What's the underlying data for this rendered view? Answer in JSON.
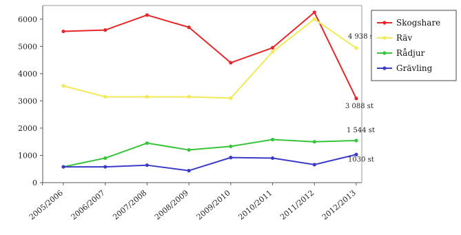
{
  "chart_data": {
    "type": "line",
    "categories": [
      "2005/2006",
      "2006/2007",
      "2007/2008",
      "2008/2009",
      "2009/2010",
      "2010/2011",
      "2011/2012",
      "2012/2013"
    ],
    "ylim": [
      0,
      6500
    ],
    "yticks": [
      0,
      1000,
      2000,
      3000,
      4000,
      5000,
      6000
    ],
    "grid": false,
    "legend_position": "right",
    "series": [
      {
        "name": "Skogshare",
        "color": "#e8262a",
        "values": [
          5550,
          5600,
          6150,
          5700,
          4400,
          4950,
          6250,
          3088
        ]
      },
      {
        "name": "Räv",
        "color": "#f2ea55",
        "values": [
          3550,
          3150,
          3150,
          3150,
          3100,
          4800,
          6000,
          4938
        ]
      },
      {
        "name": "Rådjur",
        "color": "#36c43a",
        "values": [
          580,
          900,
          1450,
          1200,
          1330,
          1580,
          1500,
          1544
        ]
      },
      {
        "name": "Grävling",
        "color": "#3b3bc8",
        "values": [
          580,
          580,
          640,
          440,
          920,
          900,
          660,
          1030
        ]
      }
    ],
    "annotations": [
      {
        "series": "Räv",
        "index": 7,
        "text": "4 938 st"
      },
      {
        "series": "Skogshare",
        "index": 7,
        "text": "3 088 st"
      },
      {
        "series": "Rådjur",
        "index": 7,
        "text": "1 544 st"
      },
      {
        "series": "Grävling",
        "index": 7,
        "text": "1030 st"
      }
    ]
  }
}
